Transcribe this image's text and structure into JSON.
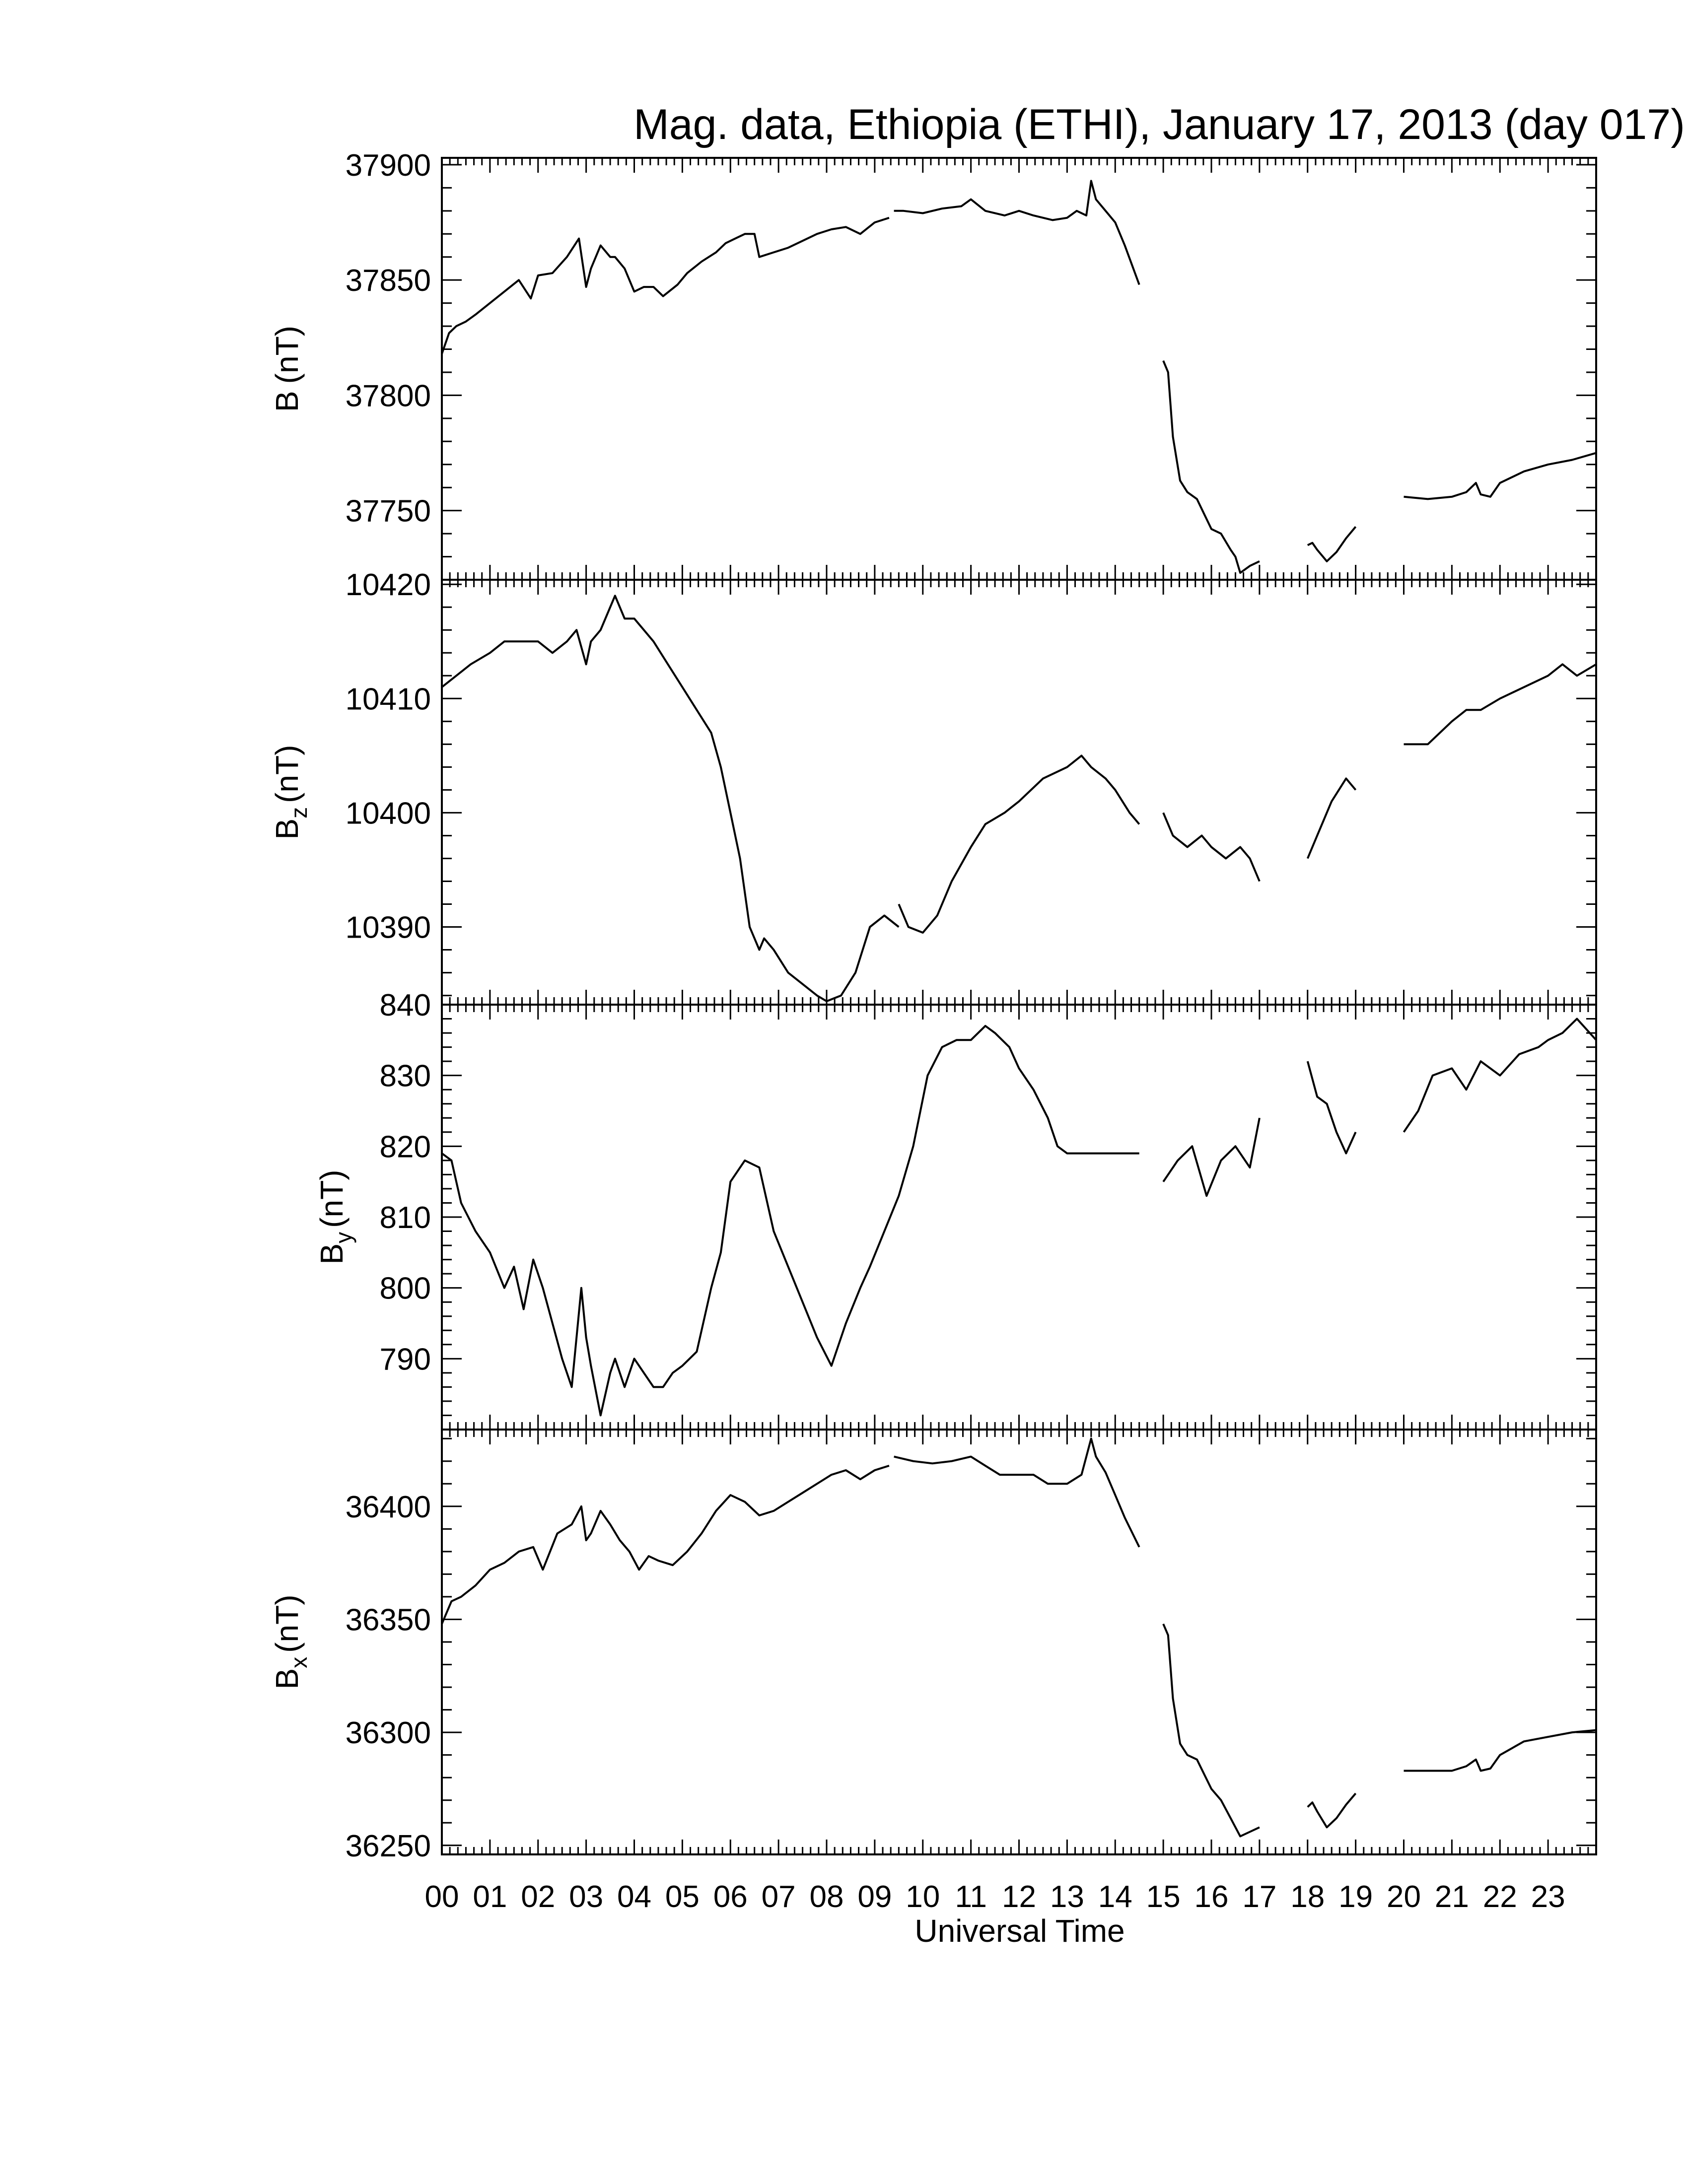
{
  "title": "Mag. data, Ethiopia (ETHI), January 17, 2013 (day 017)",
  "colors": {
    "line": "#000000",
    "axis": "#000000",
    "background": "#ffffff"
  },
  "chart_data": [
    {
      "type": "line",
      "ylabel": "B (nT)",
      "ylabel_main": "B",
      "ylabel_sub": "",
      "ylabel_unit": "(nT)",
      "ylim": [
        37720,
        37903
      ],
      "yticks": [
        "37900",
        "37850",
        "37800",
        "37750"
      ],
      "ytick_values": [
        37900,
        37850,
        37800,
        37750
      ],
      "segments": [
        {
          "x": [
            0,
            0.15,
            0.3,
            0.5,
            0.7,
            1.0,
            1.3,
            1.6,
            1.85,
            2.0,
            2.3,
            2.6,
            2.85,
            3.0,
            3.1,
            3.3,
            3.5,
            3.6,
            3.8,
            4.0,
            4.2,
            4.4,
            4.6,
            4.9,
            5.1,
            5.4,
            5.7,
            5.9,
            6.1,
            6.3,
            6.5,
            6.6,
            6.9,
            7.2,
            7.5,
            7.8,
            8.1,
            8.4,
            8.7,
            9.0,
            9.3
          ],
          "y": [
            37818,
            37827,
            37830,
            37832,
            37835,
            37840,
            37845,
            37850,
            37842,
            37852,
            37853,
            37860,
            37868,
            37847,
            37855,
            37865,
            37860,
            37860,
            37855,
            37845,
            37847,
            37847,
            37843,
            37848,
            37853,
            37858,
            37862,
            37866,
            37868,
            37870,
            37870,
            37860,
            37862,
            37864,
            37867,
            37870,
            37872,
            37873,
            37870,
            37875,
            37877
          ]
        },
        {
          "x": [
            9.4,
            9.6,
            10.0,
            10.4,
            10.8,
            11.0,
            11.3,
            11.7,
            12.0,
            12.3,
            12.7,
            13.0,
            13.2,
            13.4,
            13.5,
            13.6,
            13.8,
            14.0,
            14.2,
            14.5
          ],
          "y": [
            37880,
            37880,
            37879,
            37881,
            37882,
            37885,
            37880,
            37878,
            37880,
            37878,
            37876,
            37877,
            37880,
            37878,
            37893,
            37885,
            37880,
            37875,
            37865,
            37848
          ]
        },
        {
          "x": [
            15.0,
            15.1,
            15.2,
            15.35,
            15.5,
            15.7,
            16.0,
            16.2,
            16.4,
            16.5,
            16.6,
            16.8,
            17.0
          ],
          "y": [
            37815,
            37810,
            37782,
            37763,
            37758,
            37755,
            37742,
            37740,
            37733,
            37730,
            37723,
            37726,
            37728
          ]
        },
        {
          "x": [
            18.0,
            18.1,
            18.2,
            18.4,
            18.6,
            18.8,
            19.0
          ],
          "y": [
            37735,
            37736,
            37733,
            37728,
            37732,
            37738,
            37743
          ]
        },
        {
          "x": [
            20.0,
            20.5,
            21.0,
            21.3,
            21.5,
            21.6,
            21.8,
            22.0,
            22.5,
            23.0,
            23.5,
            24.0
          ],
          "y": [
            37756,
            37755,
            37756,
            37758,
            37762,
            37757,
            37756,
            37762,
            37767,
            37770,
            37772,
            37775
          ]
        }
      ]
    },
    {
      "type": "line",
      "ylabel": "Bz (nT)",
      "ylabel_main": "B",
      "ylabel_sub": "z",
      "ylabel_unit": "(nT)",
      "ylim": [
        10383.2,
        10420.4
      ],
      "yticks": [
        "10420",
        "10410",
        "10400",
        "10390"
      ],
      "ytick_values": [
        10420,
        10410,
        10400,
        10390
      ],
      "segments": [
        {
          "x": [
            0,
            0.3,
            0.6,
            1.0,
            1.3,
            1.6,
            2.0,
            2.3,
            2.6,
            2.8,
            3.0,
            3.1,
            3.3,
            3.5,
            3.6,
            3.8,
            4.0,
            4.2,
            4.4,
            4.7,
            5.0,
            5.3,
            5.6,
            5.8,
            6.0,
            6.2,
            6.4,
            6.6,
            6.7,
            6.9,
            7.2,
            7.5,
            7.8,
            8.0,
            8.3,
            8.6,
            8.9,
            9.2,
            9.5
          ],
          "y": [
            10411,
            10412,
            10413,
            10414,
            10415,
            10415,
            10415,
            10414,
            10415,
            10416,
            10413,
            10415,
            10416,
            10418,
            10419,
            10417,
            10417,
            10416,
            10415,
            10413,
            10411,
            10409,
            10407,
            10404,
            10400,
            10396,
            10390,
            10388,
            10389,
            10388,
            10386,
            10385,
            10384,
            10383.5,
            10384,
            10386,
            10390,
            10391,
            10390
          ]
        },
        {
          "x": [
            9.5,
            9.7,
            10.0,
            10.3,
            10.6,
            11.0,
            11.3,
            11.7,
            12.0,
            12.5,
            13.0,
            13.3,
            13.5,
            13.8,
            14.0,
            14.3,
            14.5
          ],
          "y": [
            10392,
            10390,
            10389.5,
            10391,
            10394,
            10397,
            10399,
            10400,
            10401,
            10403,
            10404,
            10405,
            10404,
            10403,
            10402,
            10400,
            10399
          ]
        },
        {
          "x": [
            15.0,
            15.2,
            15.5,
            15.8,
            16.0,
            16.3,
            16.6,
            16.8,
            17.0
          ],
          "y": [
            10400,
            10398,
            10397,
            10398,
            10397,
            10396,
            10397,
            10396,
            10394
          ]
        },
        {
          "x": [
            18.0,
            18.2,
            18.5,
            18.8,
            19.0
          ],
          "y": [
            10396,
            10398,
            10401,
            10403,
            10402
          ]
        },
        {
          "x": [
            20.0,
            20.5,
            21.0,
            21.3,
            21.6,
            22.0,
            22.5,
            23.0,
            23.3,
            23.6,
            24.0
          ],
          "y": [
            10406,
            10406,
            10408,
            10409,
            10409,
            10410,
            10411,
            10412,
            10413,
            10412,
            10413
          ]
        }
      ]
    },
    {
      "type": "line",
      "ylabel": "By (nT)",
      "ylabel_main": "B",
      "ylabel_sub": "y",
      "ylabel_unit": "(nT)",
      "ylim": [
        780,
        840
      ],
      "yticks": [
        "840",
        "830",
        "820",
        "810",
        "800",
        "790"
      ],
      "ytick_values": [
        840,
        830,
        820,
        810,
        800,
        790
      ],
      "segments": [
        {
          "x": [
            0,
            0.2,
            0.4,
            0.7,
            1.0,
            1.3,
            1.5,
            1.7,
            1.9,
            2.1,
            2.3,
            2.5,
            2.7,
            2.9,
            3.0,
            3.1,
            3.3,
            3.5,
            3.6,
            3.8,
            4.0,
            4.2,
            4.4,
            4.6,
            4.8,
            5.0,
            5.3,
            5.6,
            5.8,
            6.0,
            6.3,
            6.6,
            6.9,
            7.2,
            7.5,
            7.8,
            8.1,
            8.4,
            8.7,
            8.9,
            9.2,
            9.5,
            9.8,
            10.1,
            10.4,
            10.7,
            11.0,
            11.3,
            11.5,
            11.8,
            12.0,
            12.3,
            12.6,
            12.8,
            13.0,
            13.3,
            13.6,
            13.9,
            14.2,
            14.5
          ],
          "y": [
            819,
            818,
            812,
            808,
            805,
            800,
            803,
            797,
            804,
            800,
            795,
            790,
            786,
            800,
            793,
            789,
            782,
            788,
            790,
            786,
            790,
            788,
            786,
            786,
            788,
            789,
            791,
            800,
            805,
            815,
            818,
            817,
            808,
            803,
            798,
            793,
            789,
            795,
            800,
            803,
            808,
            813,
            820,
            830,
            834,
            835,
            835,
            837,
            836,
            834,
            831,
            828,
            824,
            820,
            819,
            819,
            819,
            819,
            819,
            819
          ]
        },
        {
          "x": [
            15.0,
            15.3,
            15.6,
            15.9,
            16.2,
            16.5,
            16.8,
            17.0
          ],
          "y": [
            815,
            818,
            820,
            813,
            818,
            820,
            817,
            824
          ]
        },
        {
          "x": [
            18.0,
            18.2,
            18.4,
            18.6,
            18.8,
            19.0
          ],
          "y": [
            832,
            827,
            826,
            822,
            819,
            822
          ]
        },
        {
          "x": [
            20.0,
            20.3,
            20.6,
            21.0,
            21.3,
            21.6,
            22.0,
            22.4,
            22.8,
            23.0,
            23.3,
            23.6,
            24.0
          ],
          "y": [
            822,
            825,
            830,
            831,
            828,
            832,
            830,
            833,
            834,
            835,
            836,
            838,
            835
          ]
        }
      ]
    },
    {
      "type": "line",
      "ylabel": "Bx (nT)",
      "ylabel_main": "B",
      "ylabel_sub": "x",
      "ylabel_unit": "(nT)",
      "ylim": [
        36246,
        36434
      ],
      "yticks": [
        "36400",
        "36350",
        "36300",
        "36250"
      ],
      "ytick_values": [
        36400,
        36350,
        36300,
        36250
      ],
      "segments": [
        {
          "x": [
            0,
            0.2,
            0.4,
            0.7,
            1.0,
            1.3,
            1.6,
            1.9,
            2.1,
            2.4,
            2.7,
            2.9,
            3.0,
            3.1,
            3.3,
            3.5,
            3.7,
            3.9,
            4.1,
            4.3,
            4.5,
            4.8,
            5.1,
            5.4,
            5.7,
            6.0,
            6.3,
            6.6,
            6.9,
            7.2,
            7.5,
            7.8,
            8.1,
            8.4,
            8.7,
            9.0,
            9.3
          ],
          "y": [
            36348,
            36358,
            36360,
            36365,
            36372,
            36375,
            36380,
            36382,
            36372,
            36388,
            36392,
            36400,
            36385,
            36388,
            36398,
            36392,
            36385,
            36380,
            36372,
            36378,
            36376,
            36374,
            36380,
            36388,
            36398,
            36405,
            36402,
            36396,
            36398,
            36402,
            36406,
            36410,
            36414,
            36416,
            36412,
            36416,
            36418
          ]
        },
        {
          "x": [
            9.4,
            9.8,
            10.2,
            10.6,
            11.0,
            11.3,
            11.6,
            12.0,
            12.3,
            12.6,
            13.0,
            13.3,
            13.5,
            13.6,
            13.8,
            14.0,
            14.2,
            14.5
          ],
          "y": [
            36422,
            36420,
            36419,
            36420,
            36422,
            36418,
            36414,
            36414,
            36414,
            36410,
            36410,
            36414,
            36430,
            36422,
            36415,
            36405,
            36395,
            36382
          ]
        },
        {
          "x": [
            15.0,
            15.1,
            15.2,
            15.35,
            15.5,
            15.7,
            16.0,
            16.2,
            16.4,
            16.6,
            16.8,
            17.0
          ],
          "y": [
            36348,
            36343,
            36315,
            36295,
            36290,
            36288,
            36275,
            36270,
            36262,
            36254,
            36256,
            36258
          ]
        },
        {
          "x": [
            18.0,
            18.1,
            18.2,
            18.4,
            18.6,
            18.8,
            19.0
          ],
          "y": [
            36267,
            36269,
            36265,
            36258,
            36262,
            36268,
            36273
          ]
        },
        {
          "x": [
            20.0,
            20.5,
            21.0,
            21.3,
            21.5,
            21.6,
            21.8,
            22.0,
            22.5,
            23.0,
            23.5,
            24.0
          ],
          "y": [
            36283,
            36283,
            36283,
            36285,
            36288,
            36283,
            36284,
            36290,
            36296,
            36298,
            36300,
            36301
          ]
        }
      ]
    }
  ],
  "xaxis": {
    "label": "Universal Time",
    "xlim": [
      0,
      24
    ],
    "ticklabels": [
      "00",
      "01",
      "02",
      "03",
      "04",
      "05",
      "06",
      "07",
      "08",
      "09",
      "10",
      "11",
      "12",
      "13",
      "14",
      "15",
      "16",
      "17",
      "18",
      "19",
      "20",
      "21",
      "22",
      "23"
    ]
  }
}
